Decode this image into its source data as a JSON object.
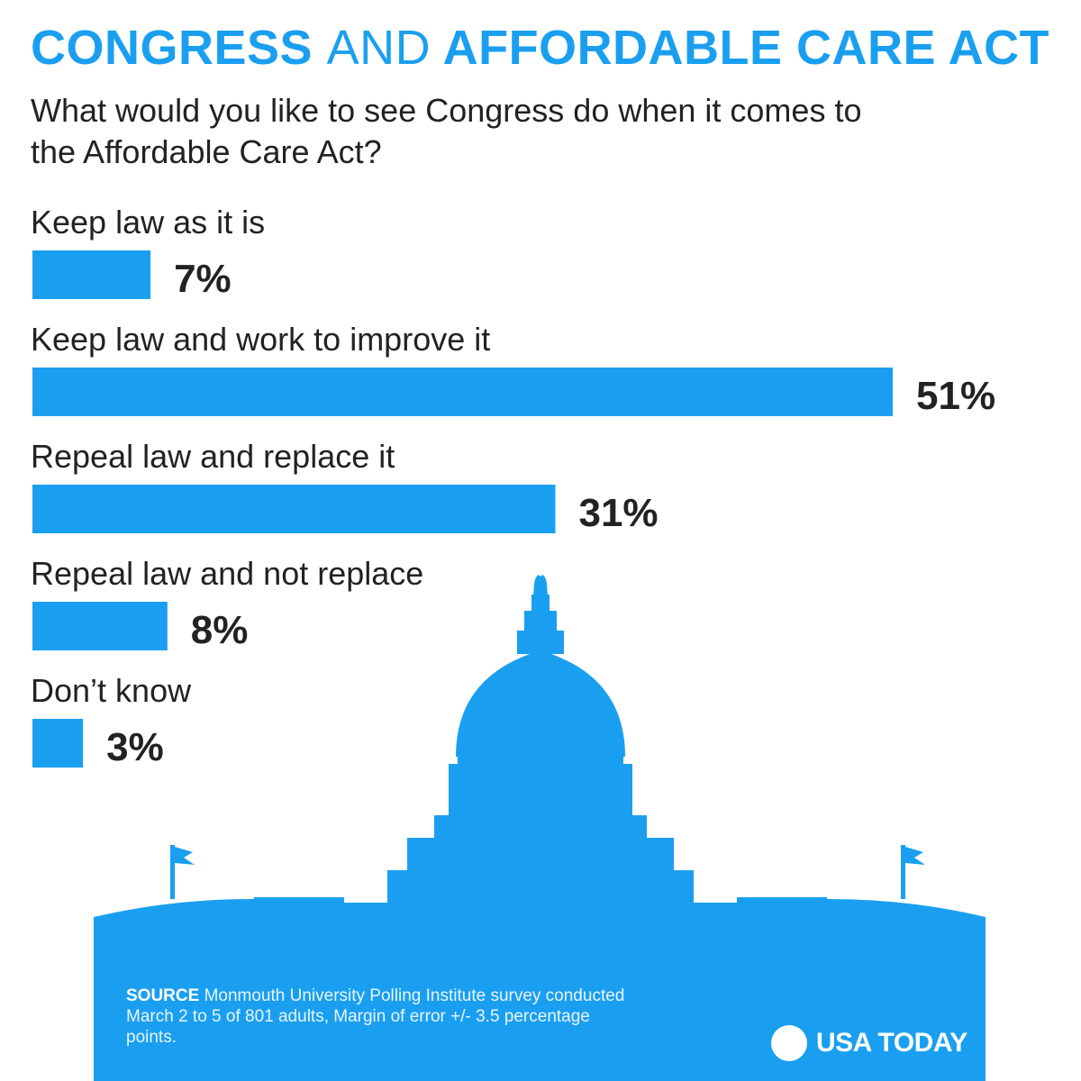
{
  "header": {
    "title_part1": "CONGRESS",
    "title_part2": "AND",
    "title_part3": "AFFORDABLE CARE ACT",
    "subtitle": "What would you like to see Congress do when it comes to the Affordable Care Act?"
  },
  "chart_data": {
    "type": "bar",
    "orientation": "horizontal",
    "title": "CONGRESS AND AFFORDABLE CARE ACT",
    "subtitle": "What would you like to see Congress do when it comes to the Affordable Care Act?",
    "categories": [
      "Keep law as it is",
      "Keep law and work to improve it",
      "Repeal law and replace it",
      "Repeal law and not replace",
      "Don’t know"
    ],
    "values": [
      7,
      51,
      31,
      8,
      3
    ],
    "value_labels": [
      "7%",
      "51%",
      "31%",
      "8%",
      "3%"
    ],
    "unit": "%",
    "xlim": [
      0,
      51
    ],
    "grid": false,
    "legend": "none",
    "bar_color": "#1a9ff0"
  },
  "footer": {
    "source_label": "SOURCE",
    "source_text": "Monmouth University Polling Institute survey conducted March 2 to 5 of 801 adults, Margin of error +/- 3.5 percentage points.",
    "brand": "USA TODAY"
  },
  "colors": {
    "accent": "#1a9ff0",
    "text": "#222222",
    "background": "#ffffff"
  }
}
